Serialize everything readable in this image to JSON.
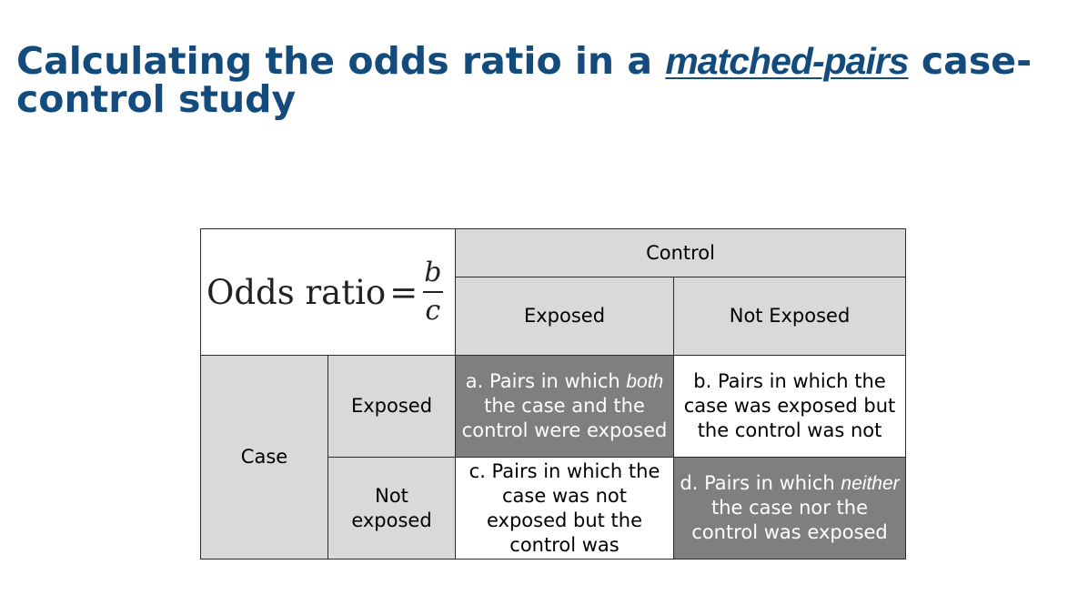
{
  "title": {
    "part1": "Calculating the odds ratio in a ",
    "emphasis": "matched-pairs",
    "part2": " case-control study"
  },
  "formula": {
    "label": "Odds ratio",
    "equals": "=",
    "numerator": "b",
    "denominator": "c"
  },
  "table": {
    "control_header": "Control",
    "col_exposed": "Exposed",
    "col_not_exposed": "Not Exposed",
    "row_case": "Case",
    "row_exposed": "Exposed",
    "row_not_exposed": "Not exposed",
    "cell_a": {
      "prefix": "a. Pairs in which ",
      "italic": "both",
      "suffix": " the case and the control were exposed"
    },
    "cell_b": "b. Pairs in which the case was exposed but the control was not",
    "cell_c": "c. Pairs in which the case was not exposed but the control was",
    "cell_d": {
      "prefix": "d. Pairs in which ",
      "italic": "neither",
      "suffix": " the case nor the control was exposed"
    }
  },
  "colors": {
    "title": "#134c7c",
    "header_gray": "#d9d9d9",
    "dark_cell": "#7f7f7f"
  }
}
